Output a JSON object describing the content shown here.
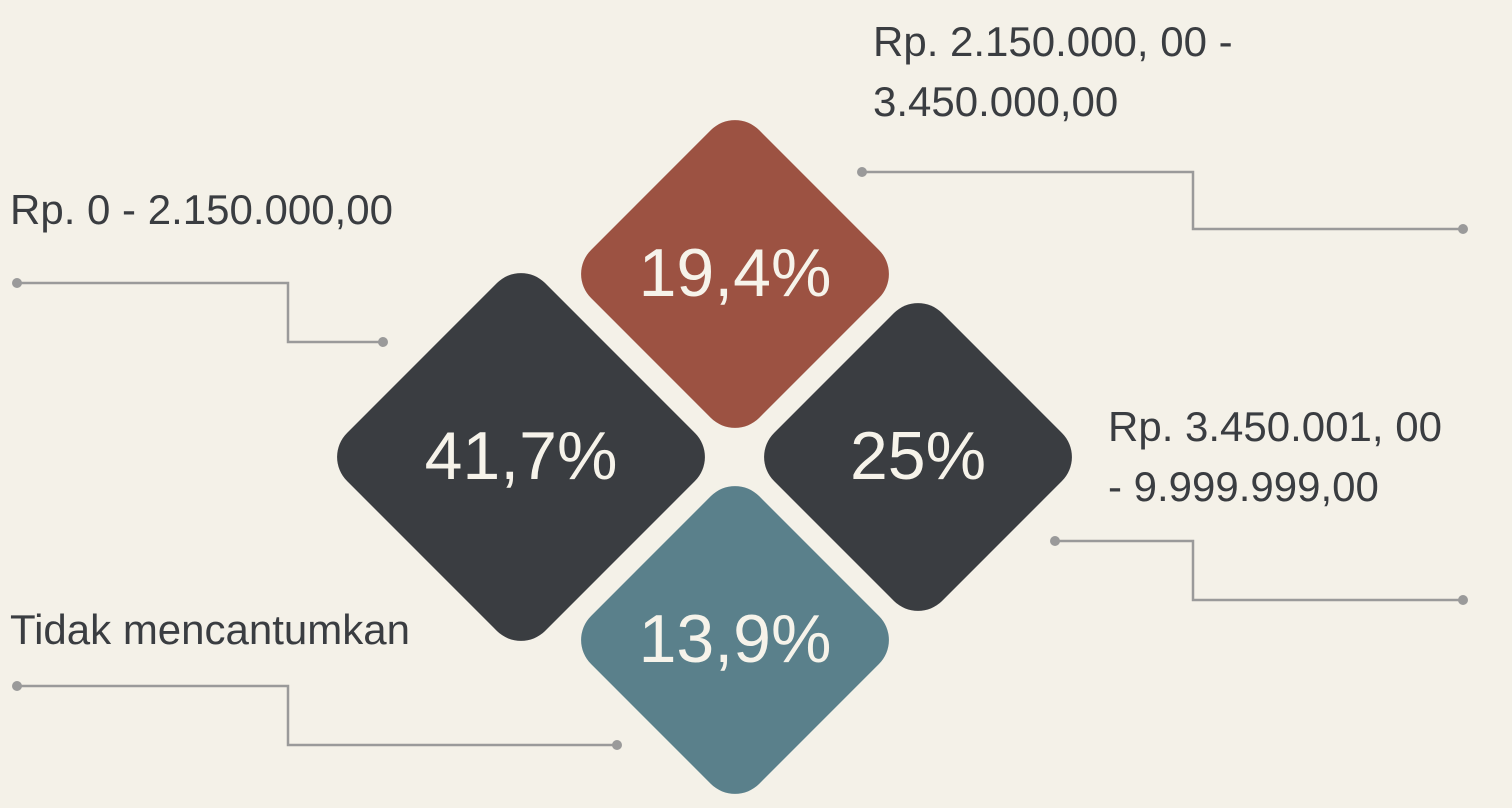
{
  "chart_data": {
    "type": "diamond",
    "categories": [
      [
        "Rp. 0 - 2.150.000,00"
      ],
      [
        "Rp. 2.150.000, 00 -",
        "3.450.000,00"
      ],
      [
        "Rp. 3.450.001, 00",
        "- 9.999.999,00"
      ],
      [
        "Tidak mencantumkan"
      ]
    ],
    "values": [
      41.7,
      19.4,
      25,
      13.9
    ],
    "value_labels": [
      "41,7%",
      "19,4%",
      "25%",
      "13,9%"
    ],
    "colors": [
      "#3a3d41",
      "#9c5242",
      "#3a3d41",
      "#5a808b"
    ]
  }
}
